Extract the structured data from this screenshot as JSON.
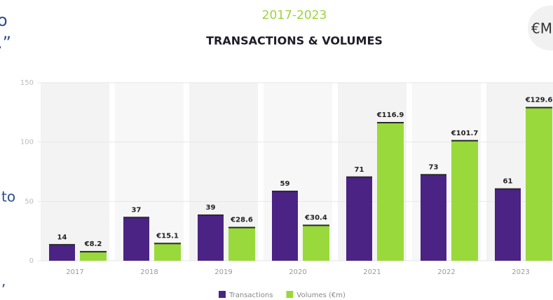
{
  "side_text": [
    "o",
    ".”",
    "to",
    ","
  ],
  "badge": "€M",
  "chart_data": {
    "type": "bar",
    "title": "2017-2023",
    "subtitle": "TRANSACTIONS & VOLUMES",
    "categories": [
      "2017",
      "2018",
      "2019",
      "2020",
      "2021",
      "2022",
      "2023"
    ],
    "series": [
      {
        "name": "Transactions",
        "color": "#4b2384",
        "values": [
          14,
          37,
          39,
          59,
          71,
          73,
          61
        ]
      },
      {
        "name": "Volumes (€m)",
        "color": "#9ad93b",
        "values": [
          8.2,
          15.1,
          28.6,
          30.4,
          116.9,
          101.7,
          129.6
        ],
        "value_labels": [
          "€8.2",
          "€15.1",
          "€28.6",
          "€30.4",
          "€116.9",
          "€101.7",
          "€129.6"
        ]
      }
    ],
    "ylim": [
      0,
      150
    ],
    "yticks": [
      0,
      50,
      100,
      150
    ],
    "grid": true,
    "legend": "bottom"
  }
}
